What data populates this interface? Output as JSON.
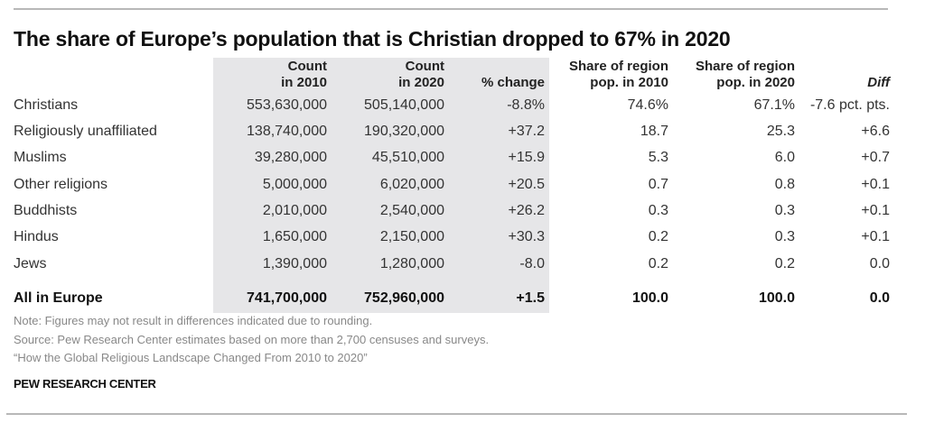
{
  "chart_data": {
    "type": "table",
    "title": "The share of Europe’s population that is Christian dropped to 67% in 2020",
    "columns": [
      {
        "key": "group",
        "label": ""
      },
      {
        "key": "count_2010",
        "label_line1": "Count",
        "label_line2": "in 2010"
      },
      {
        "key": "count_2020",
        "label_line1": "Count",
        "label_line2": "in 2020"
      },
      {
        "key": "pct_change",
        "label_line1": "",
        "label_line2": "% change"
      },
      {
        "key": "share_2010",
        "label_line1": "Share of region",
        "label_line2": "pop. in 2010"
      },
      {
        "key": "share_2020",
        "label_line1": "Share of region",
        "label_line2": "pop. in 2020"
      },
      {
        "key": "diff",
        "label_line1": "",
        "label_line2": "Diff"
      }
    ],
    "rows": [
      {
        "group": "Christians",
        "count_2010": "553,630,000",
        "count_2020": "505,140,000",
        "pct_change": "-8.8%",
        "share_2010": "74.6%",
        "share_2020": "67.1%",
        "diff": "-7.6 pct. pts."
      },
      {
        "group": "Religiously unaffiliated",
        "count_2010": "138,740,000",
        "count_2020": "190,320,000",
        "pct_change": "+37.2",
        "share_2010": "18.7",
        "share_2020": "25.3",
        "diff": "+6.6"
      },
      {
        "group": "Muslims",
        "count_2010": "39,280,000",
        "count_2020": "45,510,000",
        "pct_change": "+15.9",
        "share_2010": "5.3",
        "share_2020": "6.0",
        "diff": "+0.7"
      },
      {
        "group": "Other religions",
        "count_2010": "5,000,000",
        "count_2020": "6,020,000",
        "pct_change": "+20.5",
        "share_2010": "0.7",
        "share_2020": "0.8",
        "diff": "+0.1"
      },
      {
        "group": "Buddhists",
        "count_2010": "2,010,000",
        "count_2020": "2,540,000",
        "pct_change": "+26.2",
        "share_2010": "0.3",
        "share_2020": "0.3",
        "diff": "+0.1"
      },
      {
        "group": "Hindus",
        "count_2010": "1,650,000",
        "count_2020": "2,150,000",
        "pct_change": "+30.3",
        "share_2010": "0.2",
        "share_2020": "0.3",
        "diff": "+0.1"
      },
      {
        "group": "Jews",
        "count_2010": "1,390,000",
        "count_2020": "1,280,000",
        "pct_change": "-8.0",
        "share_2010": "0.2",
        "share_2020": "0.2",
        "diff": "0.0"
      }
    ],
    "total": {
      "group": "All in Europe",
      "count_2010": "741,700,000",
      "count_2020": "752,960,000",
      "pct_change": "+1.5",
      "share_2010": "100.0",
      "share_2020": "100.0",
      "diff": "0.0"
    }
  },
  "footer": {
    "note": "Note: Figures may not result in differences indicated due to rounding.",
    "source": "Source: Pew Research Center estimates based on more than 2,700 censuses and surveys.",
    "report": "“How the Global Religious Landscape Changed From 2010 to 2020”",
    "brand": "PEW RESEARCH CENTER"
  },
  "colors": {
    "shade": "#e6e6e8",
    "rule": "#b8b8b8",
    "note_text": "#888888"
  }
}
